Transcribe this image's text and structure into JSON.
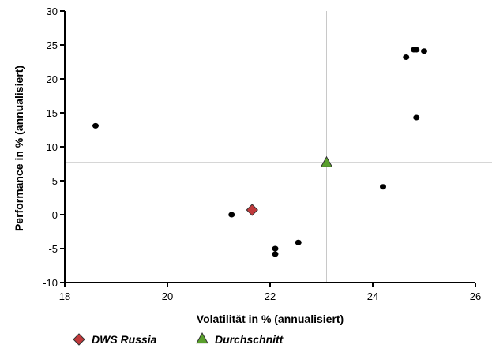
{
  "chart_data": {
    "type": "scatter",
    "title": "",
    "xlabel": "Volatilität in % (annualisiert)",
    "ylabel": "Performance in % (annualisiert)",
    "xlim": [
      18,
      26
    ],
    "ylim": [
      -10,
      30
    ],
    "xticks": [
      18,
      20,
      22,
      24,
      26
    ],
    "yticks": [
      -10,
      -5,
      0,
      5,
      10,
      15,
      20,
      25,
      30
    ],
    "grid": false,
    "reference_lines": {
      "x": 23.1,
      "y": 7.7
    },
    "colors": {
      "points": "#000000",
      "dws_russia": "#c0393b",
      "durchschnitt": "#5aa02c",
      "reference_line": "#c8c8c8"
    },
    "points": [
      {
        "x": 18.6,
        "y": 13.1
      },
      {
        "x": 21.25,
        "y": 0.0
      },
      {
        "x": 22.1,
        "y": -5.0
      },
      {
        "x": 22.1,
        "y": -5.8
      },
      {
        "x": 22.55,
        "y": -4.1
      },
      {
        "x": 24.2,
        "y": 4.1
      },
      {
        "x": 24.65,
        "y": 23.2
      },
      {
        "x": 24.8,
        "y": 24.3
      },
      {
        "x": 24.85,
        "y": 24.3
      },
      {
        "x": 25.0,
        "y": 24.1
      },
      {
        "x": 24.85,
        "y": 14.3
      }
    ],
    "highlighted": [
      {
        "name": "DWS Russia",
        "x": 21.65,
        "y": 0.7,
        "marker": "diamond"
      },
      {
        "name": "Durchschnitt",
        "x": 23.1,
        "y": 7.7,
        "marker": "triangle"
      }
    ],
    "legend": {
      "placement": "bottom-left",
      "entries": [
        {
          "label": "DWS Russia",
          "marker": "diamond",
          "color": "#c0393b"
        },
        {
          "label": "Durchschnitt",
          "marker": "triangle",
          "color": "#5aa02c"
        }
      ]
    }
  }
}
